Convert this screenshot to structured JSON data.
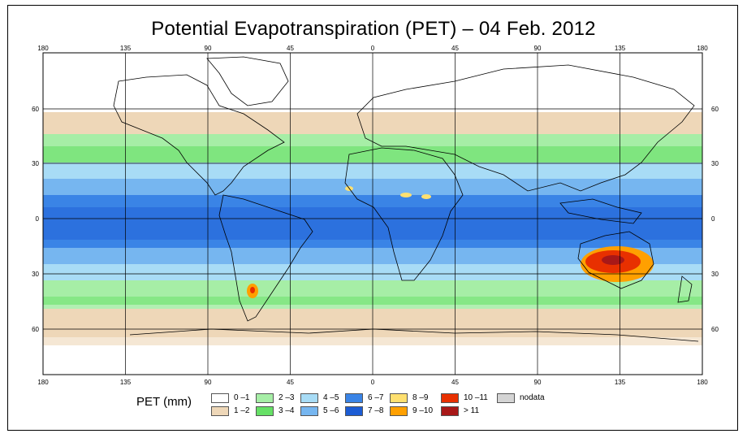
{
  "title": "Potential Evapotranspiration (PET) – 04 Feb. 2012",
  "axes": {
    "lon_labels": [
      "180",
      "135",
      "90",
      "45",
      "0",
      "45",
      "90",
      "135",
      "180"
    ],
    "lat_labels": [
      "60",
      "30",
      "0",
      "30",
      "60"
    ]
  },
  "legend": {
    "title": "PET (mm)",
    "items": [
      {
        "label": "0 –1",
        "color": "#ffffff"
      },
      {
        "label": "1 –2",
        "color": "#eed7b8"
      },
      {
        "label": "2 –3",
        "color": "#a6eea6"
      },
      {
        "label": "3 –4",
        "color": "#66e066"
      },
      {
        "label": "4 –5",
        "color": "#a8dcf6"
      },
      {
        "label": "5 –6",
        "color": "#76b6f0"
      },
      {
        "label": "6 –7",
        "color": "#3a84e6"
      },
      {
        "label": "7 –8",
        "color": "#1c5cd4"
      },
      {
        "label": "8 –9",
        "color": "#ffe070"
      },
      {
        "label": "9 –10",
        "color": "#ffa000"
      },
      {
        "label": "10 –11",
        "color": "#e83000"
      },
      {
        "label": "> 11",
        "color": "#a81818"
      },
      {
        "label": "nodata",
        "color": "#d4d4d4"
      }
    ]
  },
  "colors": {
    "land_outline": "#000000",
    "grid": "#000000"
  }
}
